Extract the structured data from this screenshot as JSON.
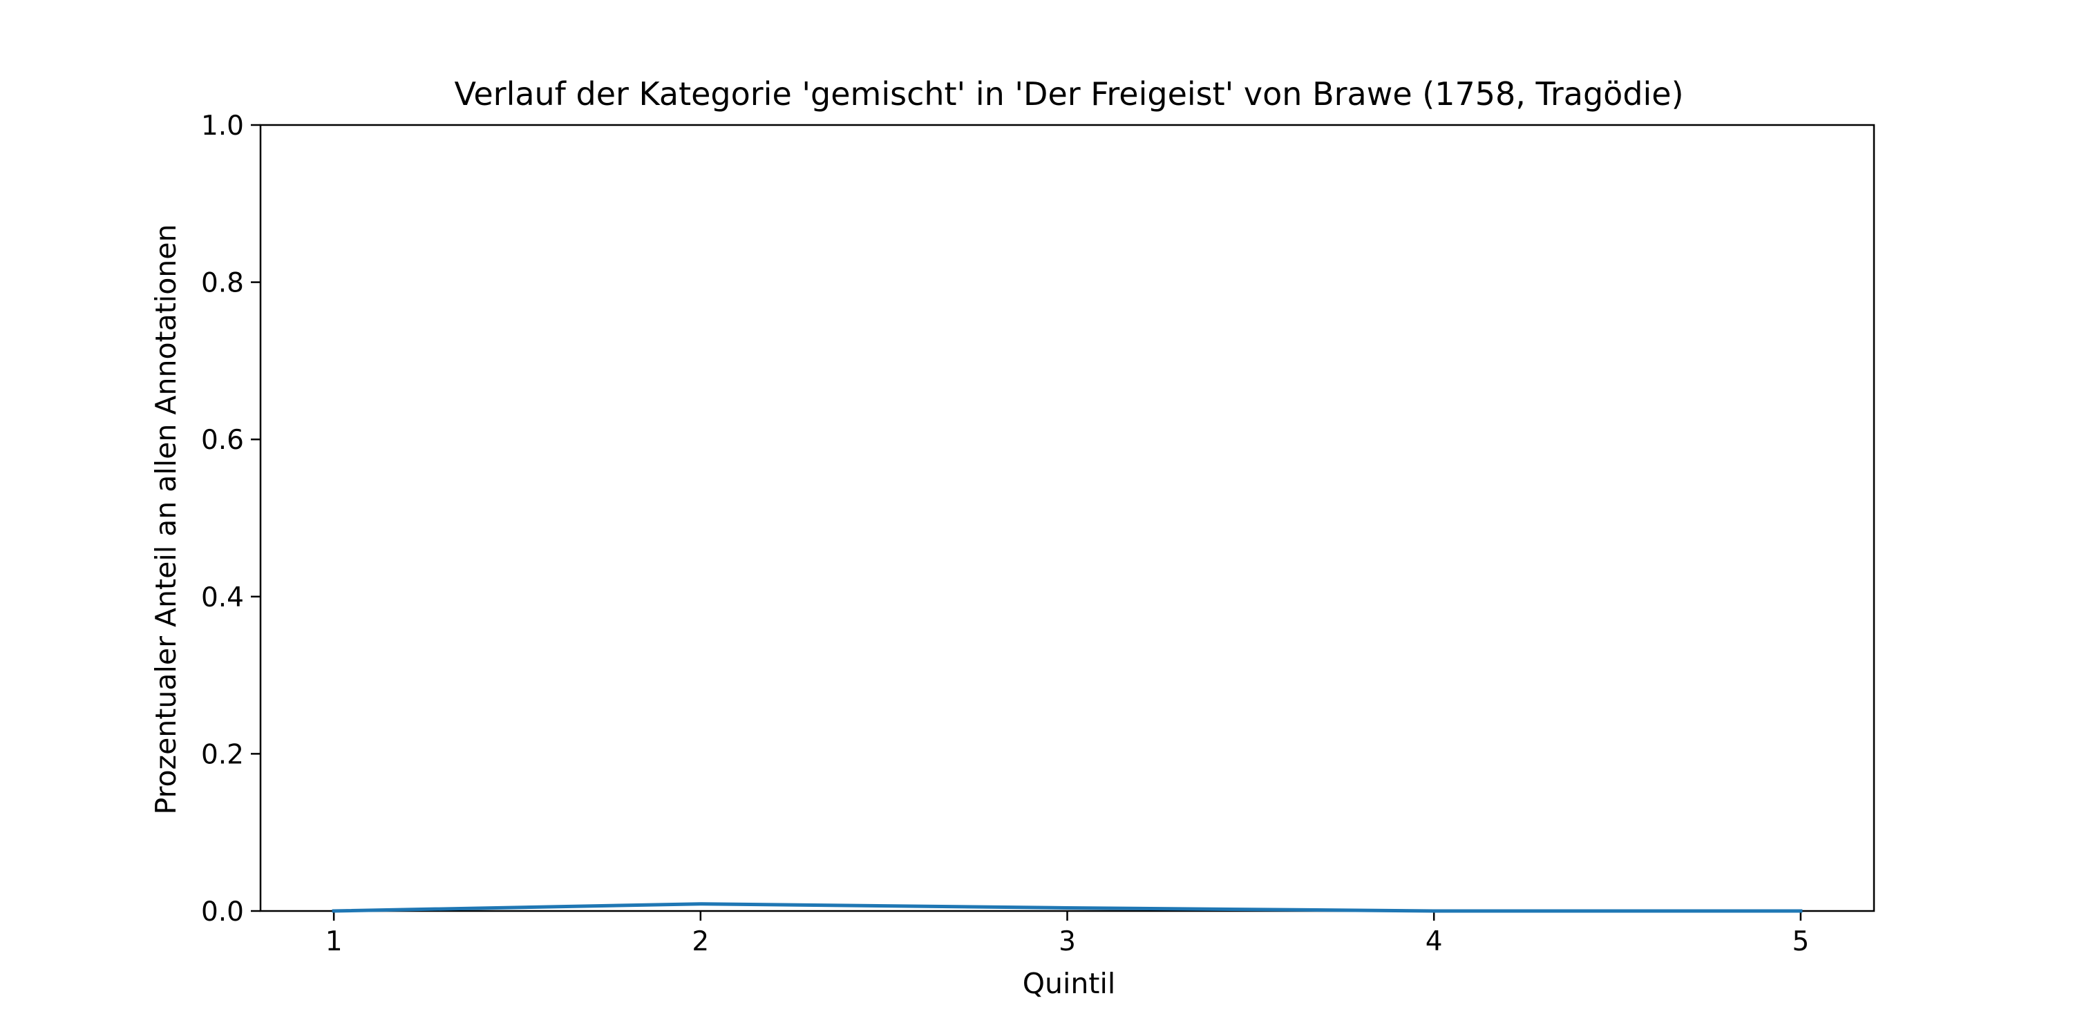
{
  "chart_data": {
    "type": "line",
    "title": "Verlauf der Kategorie 'gemischt' in 'Der Freigeist' von Brawe (1758, Tragödie)",
    "xlabel": "Quintil",
    "ylabel": "Prozentualer Anteil an allen Annotationen",
    "x": [
      1,
      2,
      3,
      4,
      5
    ],
    "series": [
      {
        "values": [
          0.0,
          0.009,
          0.004,
          0.0,
          0.0
        ]
      }
    ],
    "xlim": [
      0.8,
      5.2
    ],
    "ylim": [
      0.0,
      1.0
    ],
    "xticks": [
      "1",
      "2",
      "3",
      "4",
      "5"
    ],
    "yticks": [
      "0.0",
      "0.2",
      "0.4",
      "0.6",
      "0.8",
      "1.0"
    ],
    "grid": false,
    "line_color": "#1f77b4"
  }
}
